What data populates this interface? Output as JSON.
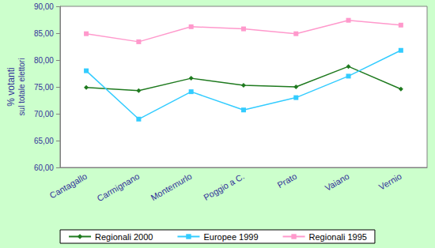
{
  "chart_data": {
    "type": "line",
    "ylabel": [
      "% votanti",
      "sul totale elettori"
    ],
    "categories": [
      "Cantagallo",
      "Carmignano",
      "Montemurlo",
      "Poggio a C.",
      "Prato",
      "Vaiano",
      "Vernio"
    ],
    "series": [
      {
        "name": "Regionali 2000",
        "color": "#1f7a1f",
        "marker": "diamond",
        "values": [
          74.9,
          74.3,
          76.6,
          75.3,
          75.0,
          78.8,
          74.6
        ]
      },
      {
        "name": "Europee 1999",
        "color": "#33ccff",
        "marker": "square",
        "values": [
          78.0,
          69.0,
          74.1,
          70.7,
          73.0,
          77.0,
          81.8
        ]
      },
      {
        "name": "Regionali 1995",
        "color": "#ff99cc",
        "marker": "square",
        "values": [
          84.9,
          83.4,
          86.2,
          85.8,
          84.9,
          87.4,
          86.5
        ]
      }
    ],
    "ylim": [
      60,
      90
    ],
    "yticks": [
      {
        "value": 60,
        "label": "60,00"
      },
      {
        "value": 65,
        "label": "65,00"
      },
      {
        "value": 70,
        "label": "70,00"
      },
      {
        "value": 75,
        "label": "75,00"
      },
      {
        "value": 80,
        "label": "80,00"
      },
      {
        "value": 85,
        "label": "85,00"
      },
      {
        "value": 90,
        "label": "90,00"
      }
    ],
    "grid": false,
    "legend": "bottom"
  }
}
